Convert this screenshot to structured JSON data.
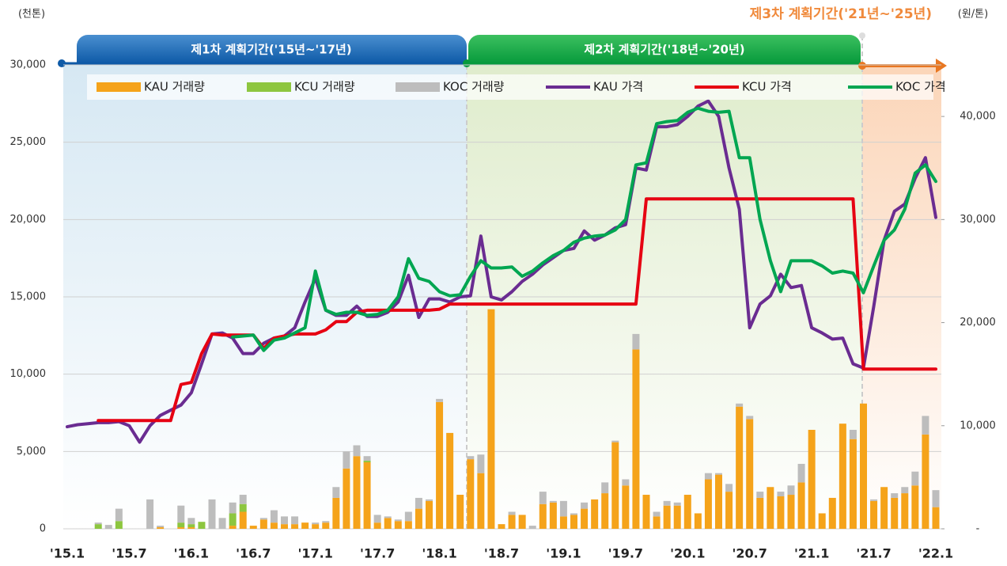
{
  "chart_data": {
    "type": "bar-line",
    "y_unit": "(천톤)",
    "y2_unit": "(원/톤)",
    "phases": [
      "제1차 계획기간('15년~'17년)",
      "제2차 계획기간('18년~'20년)",
      "제3차 계획기간('21년~'25년)"
    ],
    "categories": [
      "'15.1",
      null,
      null,
      null,
      null,
      null,
      "'15.7",
      null,
      null,
      null,
      null,
      null,
      "'16.1",
      null,
      null,
      null,
      null,
      null,
      "'16.7",
      null,
      null,
      null,
      null,
      null,
      "'17.1",
      null,
      null,
      null,
      null,
      null,
      "'17.7",
      null,
      null,
      null,
      null,
      null,
      "'18.1",
      null,
      null,
      null,
      null,
      null,
      "'18.7",
      null,
      null,
      null,
      null,
      null,
      "'19.1",
      null,
      null,
      null,
      null,
      null,
      "'19.7",
      null,
      null,
      null,
      null,
      null,
      "'20.1",
      null,
      null,
      null,
      null,
      null,
      "'20.7",
      null,
      null,
      null,
      null,
      null,
      "'21.1",
      null,
      null,
      null,
      null,
      null,
      "'21.7",
      null,
      null,
      null,
      null,
      null,
      "'22.1"
    ],
    "ylim": [
      0,
      30000
    ],
    "yticks": [
      0,
      {
        "value": 5000,
        "label": "5,000"
      },
      {
        "value": 10000,
        "label": "10,000"
      },
      {
        "value": 15000,
        "label": "15,000"
      },
      {
        "value": 20000,
        "label": "20,000"
      },
      {
        "value": 25000,
        "label": "25,000"
      },
      {
        "value": 30000,
        "label": "30,000"
      }
    ],
    "y2lim": [
      0,
      45000
    ],
    "y2ticks": [
      {
        "value": 0,
        "label": "-"
      },
      {
        "value": 10000,
        "label": "10,000"
      },
      {
        "value": 20000,
        "label": "20,000"
      },
      {
        "value": 30000,
        "label": "30,000"
      },
      {
        "value": 40000,
        "label": "40,000"
      }
    ],
    "grid": true,
    "series": [
      {
        "name": "KAU 거래량",
        "type": "bar",
        "color": "#f5a31a",
        "values": [
          0,
          0,
          0,
          0,
          0,
          0,
          0,
          0,
          0,
          100,
          0,
          100,
          100,
          0,
          0,
          0,
          200,
          1100,
          200,
          600,
          400,
          300,
          300,
          400,
          300,
          400,
          2000,
          3900,
          4700,
          4300,
          400,
          700,
          500,
          500,
          1300,
          1800,
          8200,
          6200,
          2200,
          4500,
          3600,
          14200,
          300,
          900,
          900,
          0,
          1600,
          1700,
          800,
          900,
          1300,
          1900,
          2300,
          5600,
          2800,
          11600,
          2200,
          800,
          1500,
          1500,
          2200,
          1000,
          3200,
          3500,
          2400,
          7900,
          7100,
          2000,
          2700,
          2100,
          2200,
          3000,
          6400,
          1000,
          2000,
          6800,
          5800,
          8100,
          1800,
          2700,
          2000,
          2300,
          2800,
          6100,
          1400
        ]
      },
      {
        "name": "KCU 거래량",
        "type": "bar",
        "color": "#8dc63f",
        "values": [
          0,
          0,
          0,
          300,
          0,
          500,
          0,
          0,
          0,
          0,
          0,
          300,
          200,
          450,
          0,
          0,
          800,
          500,
          0,
          0,
          0,
          0,
          0,
          0,
          0,
          0,
          0,
          0,
          0,
          100,
          0,
          0,
          0,
          0,
          0,
          0,
          0,
          0,
          0,
          0,
          0,
          0,
          0,
          0,
          0,
          0,
          0,
          0,
          0,
          0,
          0,
          0,
          0,
          0,
          0,
          0,
          0,
          0,
          0,
          0,
          0,
          0,
          0,
          0,
          0,
          0,
          0,
          0,
          0,
          0,
          0,
          0,
          0,
          0,
          0,
          0,
          0,
          0,
          0,
          0,
          0,
          0,
          0,
          0,
          0
        ]
      },
      {
        "name": "KOC 거래량",
        "type": "bar",
        "color": "#bdbdbd",
        "values": [
          0,
          0,
          0,
          100,
          250,
          800,
          0,
          0,
          1900,
          100,
          0,
          1100,
          400,
          0,
          1900,
          700,
          700,
          600,
          0,
          100,
          800,
          500,
          500,
          0,
          100,
          100,
          700,
          1100,
          700,
          300,
          500,
          100,
          100,
          600,
          700,
          100,
          200,
          0,
          0,
          200,
          1200,
          0,
          0,
          200,
          0,
          200,
          800,
          100,
          1000,
          100,
          400,
          0,
          700,
          100,
          400,
          1000,
          0,
          300,
          300,
          200,
          0,
          0,
          400,
          100,
          500,
          200,
          200,
          400,
          0,
          300,
          600,
          1200,
          0,
          0,
          0,
          0,
          600,
          0,
          100,
          0,
          300,
          400,
          900,
          1200,
          1100
        ]
      },
      {
        "name": "KAU 가격",
        "type": "line",
        "axis": "y2",
        "color": "#6a2c91",
        "values": [
          9900,
          10100,
          10200,
          10300,
          10300,
          10400,
          10000,
          8400,
          10000,
          11000,
          11500,
          12000,
          13200,
          16000,
          18900,
          19000,
          18500,
          17000,
          17000,
          18000,
          18500,
          18700,
          19500,
          22000,
          24300,
          21200,
          20700,
          20700,
          21600,
          20600,
          20600,
          21000,
          22000,
          24600,
          20500,
          22300,
          22300,
          22000,
          22500,
          22600,
          28400,
          22500,
          22200,
          23000,
          24000,
          24700,
          25600,
          26300,
          27000,
          27200,
          28900,
          28000,
          28500,
          29200,
          29500,
          35000,
          34800,
          39000,
          39000,
          39200,
          40000,
          41000,
          41500,
          40000,
          35000,
          31000,
          19500,
          21800,
          22600,
          24700,
          23400,
          23600,
          19500,
          19000,
          18400,
          18500,
          16000,
          15600,
          21600,
          28000,
          30800,
          31500,
          34000,
          36000,
          30200
        ]
      },
      {
        "name": "KCU 가격",
        "type": "line",
        "axis": "y2",
        "color": "#e60012",
        "values": [
          null,
          null,
          null,
          10500,
          10500,
          10500,
          10500,
          10500,
          10500,
          10500,
          10500,
          14000,
          14200,
          17000,
          18900,
          18800,
          18800,
          18800,
          18800,
          17500,
          18500,
          18700,
          18900,
          18900,
          18900,
          19300,
          20100,
          20100,
          21000,
          21200,
          21200,
          21200,
          21200,
          21200,
          21200,
          21200,
          21300,
          21800,
          21800,
          21800,
          21800,
          21800,
          21800,
          21800,
          21800,
          21800,
          21800,
          21800,
          21800,
          21800,
          21800,
          21800,
          21800,
          21800,
          21800,
          21800,
          32000,
          32000,
          32000,
          32000,
          32000,
          32000,
          32000,
          32000,
          32000,
          32000,
          32000,
          32000,
          32000,
          32000,
          32000,
          32000,
          32000,
          32000,
          32000,
          32000,
          32000,
          15500,
          15500,
          15500,
          15500,
          15500,
          15500,
          15500,
          15500
        ]
      },
      {
        "name": "KOC 가격",
        "type": "line",
        "axis": "y2",
        "color": "#00a651",
        "values": [
          null,
          null,
          null,
          null,
          null,
          null,
          null,
          null,
          null,
          null,
          null,
          null,
          null,
          null,
          null,
          null,
          18600,
          18700,
          18800,
          17300,
          18300,
          18500,
          19000,
          19500,
          25000,
          21200,
          20800,
          21000,
          21000,
          20700,
          20800,
          21200,
          22500,
          26200,
          24300,
          24000,
          23000,
          22600,
          22700,
          24500,
          26000,
          25300,
          25300,
          25400,
          24500,
          25000,
          25800,
          26500,
          27000,
          27800,
          28200,
          28400,
          28500,
          29000,
          30000,
          35300,
          35500,
          39300,
          39500,
          39600,
          40400,
          40800,
          40500,
          40400,
          40500,
          36000,
          36000,
          30000,
          26000,
          23000,
          26000,
          26000,
          26000,
          25500,
          24800,
          25000,
          24800,
          22900,
          25500,
          28000,
          29000,
          31000,
          34500,
          35300,
          33700
        ]
      }
    ]
  }
}
